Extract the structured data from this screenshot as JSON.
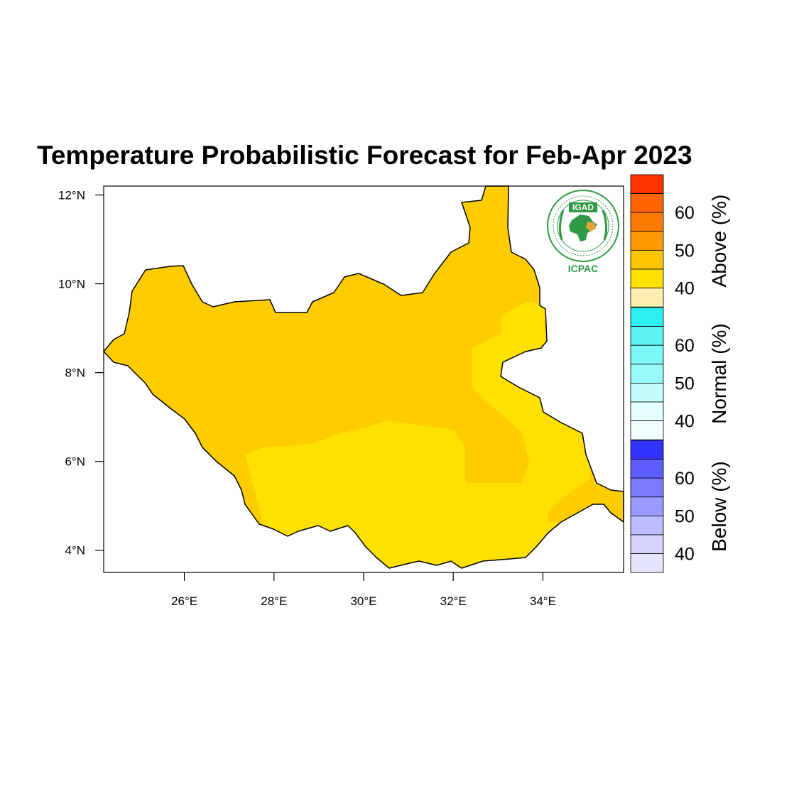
{
  "title": "Temperature Probabilistic Forecast for Feb-Apr 2023",
  "map": {
    "region": "South Sudan",
    "lon_range": [
      24.2,
      35.8
    ],
    "lat_range": [
      3.5,
      12.2
    ],
    "x_ticks": [
      {
        "value": 26,
        "label": "26°E"
      },
      {
        "value": 28,
        "label": "28°E"
      },
      {
        "value": 30,
        "label": "30°E"
      },
      {
        "value": 32,
        "label": "32°E"
      },
      {
        "value": 34,
        "label": "34°E"
      }
    ],
    "y_ticks": [
      {
        "value": 4,
        "label": "4°N"
      },
      {
        "value": 6,
        "label": "6°N"
      },
      {
        "value": 8,
        "label": "8°N"
      },
      {
        "value": 10,
        "label": "10°N"
      },
      {
        "value": 12,
        "label": "12°N"
      }
    ],
    "fill_colors": {
      "above_40_45": "#FFCC00",
      "above_35_40": "#FFE100"
    }
  },
  "logo": {
    "top_text": "IGAD",
    "bottom_text": "ICPAC",
    "icon": "igad-icpac-logo",
    "color": "#2E9A46"
  },
  "colorbar": {
    "groups": [
      {
        "name": "Above (%)",
        "colors": [
          "#FFEEB0",
          "#FFE100",
          "#FFC400",
          "#FF9900",
          "#FF7A00",
          "#FF6600",
          "#FF3300"
        ],
        "labels": [
          "40",
          "50",
          "60"
        ]
      },
      {
        "name": "Normal (%)",
        "colors": [
          "#F2FFFF",
          "#E4FEFE",
          "#C4FCFC",
          "#99FAFA",
          "#7AF7F7",
          "#5CF4F4",
          "#2EF0F0"
        ],
        "labels": [
          "40",
          "50",
          "60"
        ]
      },
      {
        "name": "Below (%)",
        "colors": [
          "#E4E4FF",
          "#D4D4FF",
          "#BBBBFF",
          "#9A9AFF",
          "#7A7AFF",
          "#5E5EFF",
          "#3333FF"
        ],
        "labels": [
          "40",
          "50",
          "60"
        ]
      }
    ]
  }
}
